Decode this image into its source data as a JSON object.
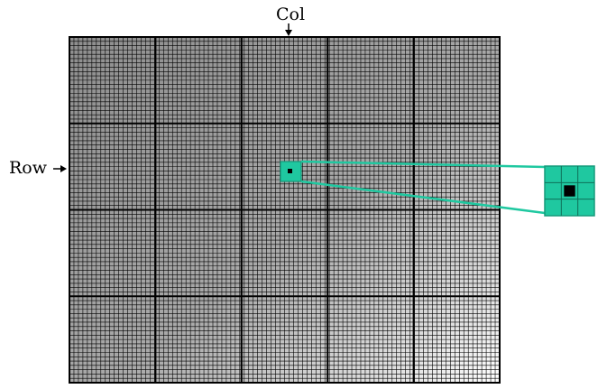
{
  "labels": {
    "col": "Col",
    "row": "Row"
  },
  "grid": {
    "columns": 96,
    "rows": 80,
    "block_columns": 5,
    "block_rows": 4
  },
  "zoom": {
    "kernel_size": 3,
    "center_color": "#000000"
  },
  "colors": {
    "highlight": "#1fc8a0",
    "highlight_stroke": "#159a7a",
    "grid_line": "#000000",
    "shade_dark": "#8a8a8a",
    "background": "#ffffff"
  },
  "icons": {
    "col_arrow": "arrow-down-icon",
    "row_arrow": "arrow-right-icon"
  }
}
